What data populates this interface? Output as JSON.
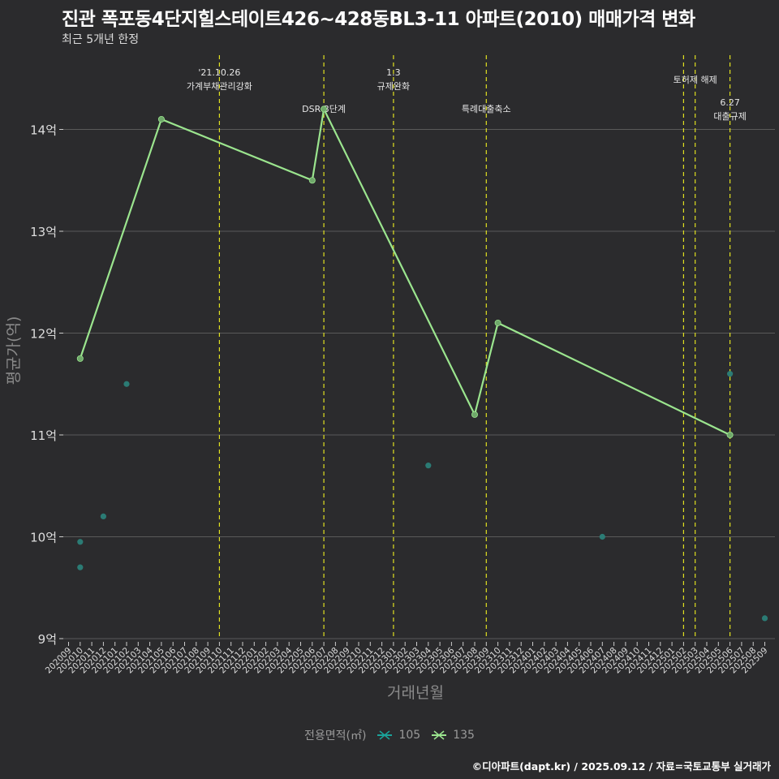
{
  "title": "진관 폭포동4단지힐스테이트426~428동BL3-11 아파트(2010) 매매가격 변화",
  "subtitle": "최근 5개년 한정",
  "caption": "©디아파트(dapt.kr) / 2025.09.12 / 자료=국토교통부 실거래가",
  "legend": {
    "title": "전용면적(㎡)",
    "items": [
      {
        "label": "105",
        "color": "#1aa39a"
      },
      {
        "label": "135",
        "color": "#9be58e"
      }
    ]
  },
  "colors": {
    "background": "#2b2b2d",
    "grid": "#5a5a5a",
    "policy_line": "#e0e020",
    "series_105": "#1aa39a",
    "series_135": "#9be58e"
  },
  "chart_data": {
    "type": "line",
    "xlabel": "거래년월",
    "ylabel": "평균가(억)",
    "ylim": [
      9,
      14.8
    ],
    "yticks": [
      9,
      10,
      11,
      12,
      13,
      14
    ],
    "ytick_labels": [
      "9억",
      "10억",
      "11억",
      "12억",
      "13억",
      "14억"
    ],
    "grid": true,
    "legend_position": "bottom",
    "x_ticks": [
      "202009",
      "202010",
      "202011",
      "202012",
      "202101",
      "202102",
      "202103",
      "202104",
      "202105",
      "202106",
      "202107",
      "202108",
      "202109",
      "202110",
      "202111",
      "202112",
      "202201",
      "202202",
      "202203",
      "202204",
      "202205",
      "202206",
      "202207",
      "202208",
      "202209",
      "202210",
      "202211",
      "202212",
      "202301",
      "202302",
      "202303",
      "202304",
      "202305",
      "202306",
      "202307",
      "202308",
      "202309",
      "202310",
      "202311",
      "202312",
      "202401",
      "202402",
      "202403",
      "202404",
      "202405",
      "202406",
      "202407",
      "202408",
      "202409",
      "202410",
      "202411",
      "202412",
      "202501",
      "202502",
      "202503",
      "202504",
      "202505",
      "202506",
      "202507",
      "202508",
      "202509"
    ],
    "series": [
      {
        "name": "105",
        "style": "points",
        "points": [
          {
            "x": "202010",
            "y": 9.95
          },
          {
            "x": "202010",
            "y": 9.7
          },
          {
            "x": "202012",
            "y": 10.2
          },
          {
            "x": "202102",
            "y": 11.5
          },
          {
            "x": "202304",
            "y": 10.7
          },
          {
            "x": "202407",
            "y": 10.0
          },
          {
            "x": "202506",
            "y": 11.6
          },
          {
            "x": "202509",
            "y": 9.2
          }
        ]
      },
      {
        "name": "135",
        "style": "line",
        "points": [
          {
            "x": "202010",
            "y": 11.75
          },
          {
            "x": "202105",
            "y": 14.1
          },
          {
            "x": "202206",
            "y": 13.5
          },
          {
            "x": "202207",
            "y": 14.2
          },
          {
            "x": "202308",
            "y": 11.2
          },
          {
            "x": "202310",
            "y": 12.1
          },
          {
            "x": "202506",
            "y": 11.0
          }
        ]
      }
    ],
    "annotations": [
      {
        "x": "202110",
        "lines": [
          "'21.10.26",
          "가계부채관리강화"
        ],
        "row": 0
      },
      {
        "x": "202207",
        "lines": [
          "DSR 3단계"
        ],
        "row": 2
      },
      {
        "x": "202301",
        "lines": [
          "1.3",
          "규제완화"
        ],
        "row": 0
      },
      {
        "x": "202309",
        "lines": [
          "특례대출축소"
        ],
        "row": 2
      },
      {
        "x": "202502",
        "lines": [],
        "row": 0
      },
      {
        "x": "202503",
        "lines": [
          "토허제 해제"
        ],
        "row": 1
      },
      {
        "x": "202506",
        "lines": [
          "6.27",
          "대출규제"
        ],
        "row": 3
      }
    ]
  }
}
